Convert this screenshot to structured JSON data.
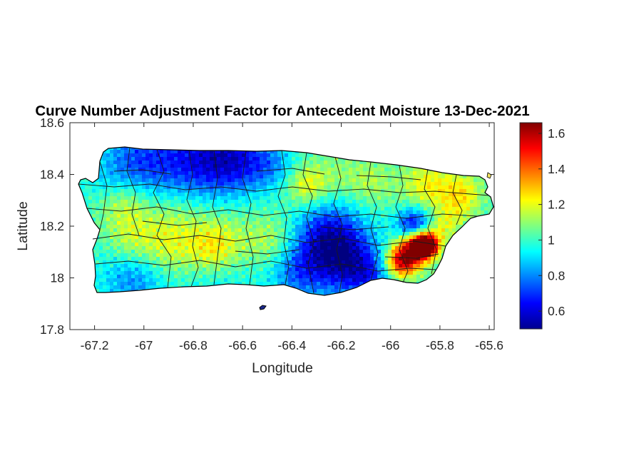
{
  "title": "Curve Number Adjustment Factor for Antecedent Moisture 13-Dec-2021",
  "chart_data": {
    "type": "heatmap",
    "title": "Curve Number Adjustment Factor for Antecedent Moisture 13-Dec-2021",
    "xlabel": "Longitude",
    "ylabel": "Latitude",
    "xlim": [
      -67.3,
      -65.58
    ],
    "ylim": [
      17.8,
      18.6
    ],
    "xticks": [
      -67.2,
      -67,
      -66.8,
      -66.6,
      -66.4,
      -66.2,
      -66,
      -65.8,
      -65.6
    ],
    "xtick_labels": [
      "-67.2",
      "-67",
      "-66.8",
      "-66.6",
      "-66.4",
      "-66.2",
      "-66",
      "-65.8",
      "-65.6"
    ],
    "yticks": [
      17.8,
      18,
      18.2,
      18.4,
      18.6
    ],
    "ytick_labels": [
      "17.8",
      "18",
      "18.2",
      "18.4",
      "18.6"
    ],
    "colormap": "jet",
    "colorbar": {
      "limits": [
        0.5,
        1.66
      ],
      "ticks": [
        0.6,
        0.8,
        1,
        1.2,
        1.4,
        1.6
      ],
      "tick_labels": [
        "0.6",
        "0.8",
        "1",
        "1.2",
        "1.4",
        "1.6"
      ]
    },
    "grid": false,
    "features": "Puerto Rico municipality boundaries overlaid on gridded adjustment factor values"
  }
}
